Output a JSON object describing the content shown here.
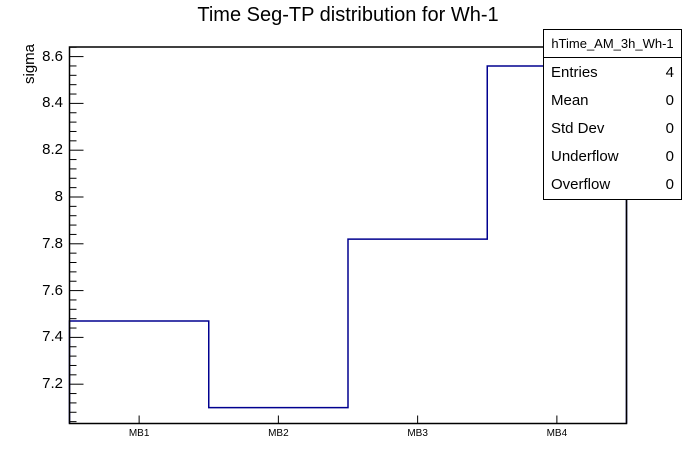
{
  "chart_data": {
    "type": "step-histogram",
    "title": "Time Seg-TP distribution for Wh-1",
    "ylabel": "sigma",
    "xlabel": "",
    "categories": [
      "MB1",
      "MB2",
      "MB3",
      "MB4"
    ],
    "values": [
      7.47,
      7.1,
      7.82,
      8.56
    ],
    "ylim": [
      7.032,
      8.641
    ],
    "y_major_ticks": [
      7.2,
      7.4,
      7.6,
      7.8,
      8,
      8.2,
      8.4,
      8.6
    ],
    "y_tick_labels": [
      "7.2",
      "7.4",
      "7.6",
      "7.8",
      "8",
      "8.2",
      "8.4",
      "8.6"
    ],
    "y_minor_step": 0.04,
    "grid": false,
    "legend_position": "none",
    "line_color": "#00008f",
    "frame_color": "#000000",
    "background_color": "#ffffff"
  },
  "stats": {
    "title": "hTime_AM_3h_Wh-1",
    "rows": [
      {
        "label": "Entries",
        "value": "4"
      },
      {
        "label": "Mean",
        "value": "0"
      },
      {
        "label": "Std Dev",
        "value": "0"
      },
      {
        "label": "Underflow",
        "value": "0"
      },
      {
        "label": "Overflow",
        "value": "0"
      }
    ]
  }
}
